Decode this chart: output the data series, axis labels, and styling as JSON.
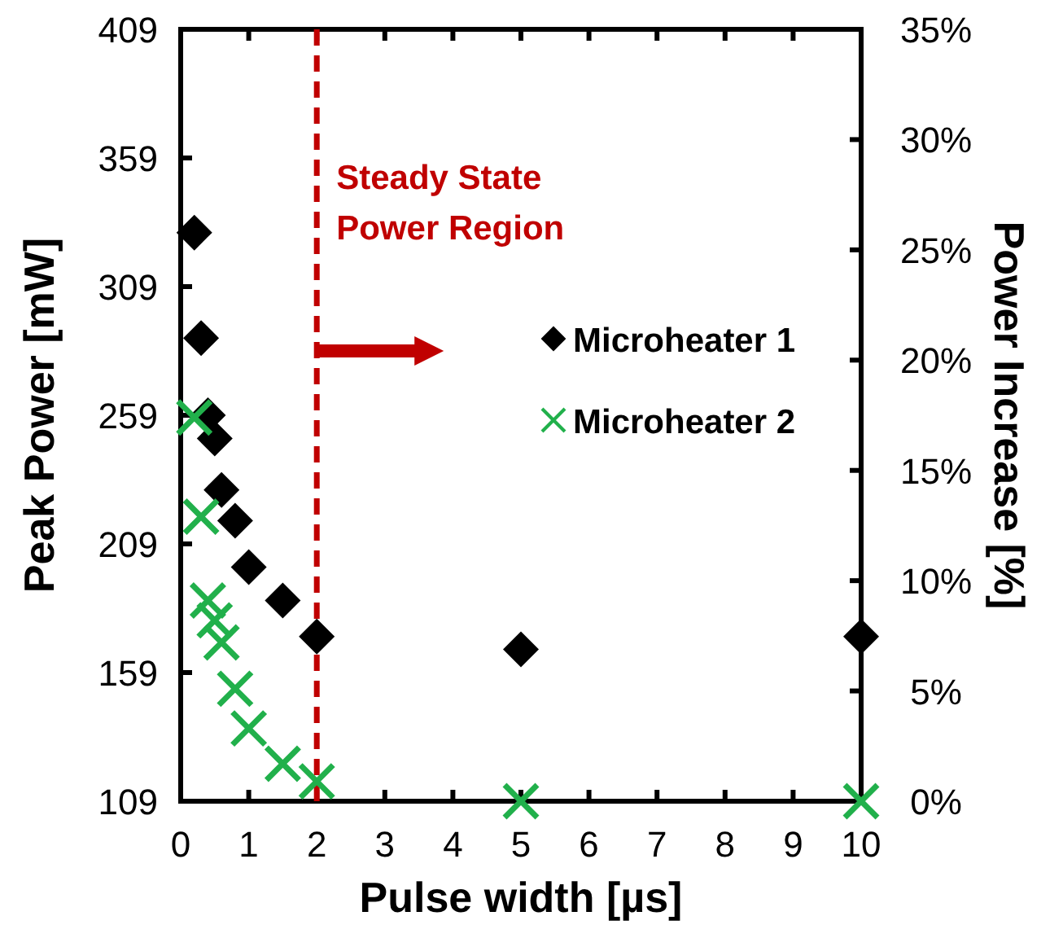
{
  "chart_data": {
    "type": "scatter",
    "xlabel": "Pulse width [µs]",
    "ylabel": "Peak Power [mW]",
    "y2label": "Power Increase [%]",
    "xlim": [
      0,
      10
    ],
    "xticks": [
      0,
      1,
      2,
      3,
      4,
      5,
      6,
      7,
      8,
      9,
      10
    ],
    "ylim": [
      109,
      409
    ],
    "yticks": [
      109,
      159,
      209,
      259,
      309,
      359,
      409
    ],
    "y2lim": [
      0,
      35
    ],
    "y2ticks": [
      {
        "value": 0,
        "label": "0%"
      },
      {
        "value": 5,
        "label": "5%"
      },
      {
        "value": 10,
        "label": "10%"
      },
      {
        "value": 15,
        "label": "15%"
      },
      {
        "value": 20,
        "label": "20%"
      },
      {
        "value": 25,
        "label": "25%"
      },
      {
        "value": 30,
        "label": "30%"
      },
      {
        "value": 35,
        "label": "35%"
      }
    ],
    "series": [
      {
        "name": "Microheater 1",
        "color": "#000000",
        "marker": "diamond",
        "x": [
          0.2,
          0.3,
          0.4,
          0.5,
          0.6,
          0.8,
          1,
          1.5,
          2,
          5,
          10
        ],
        "values": [
          330,
          289,
          259,
          250,
          230,
          218,
          200,
          187,
          173,
          168,
          173
        ]
      },
      {
        "name": "Microheater 2",
        "color": "#21b04b",
        "marker": "cross",
        "axis": "y2",
        "x": [
          0.2,
          0.3,
          0.4,
          0.5,
          0.6,
          0.8,
          1,
          1.5,
          2,
          5,
          10
        ],
        "values": [
          17.4,
          12.9,
          9.1,
          8.2,
          7.2,
          5.1,
          3.3,
          1.7,
          0.9,
          0,
          0
        ]
      }
    ],
    "ref_lines": [
      {
        "axis": "x",
        "value": 2,
        "label": "Steady State Power Region",
        "color": "#c00000",
        "line_style": "dashed"
      }
    ],
    "legend": "right",
    "grid": false
  }
}
